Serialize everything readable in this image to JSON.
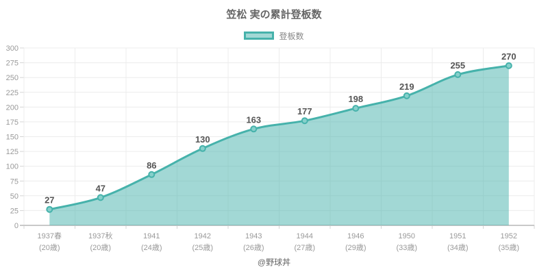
{
  "title": "笠松 実の累計登板数",
  "legend": {
    "label": "登板数"
  },
  "footer": "@野球丼",
  "colors": {
    "line": "#46b2ab",
    "area_fill": "rgba(70,178,171,0.5)",
    "marker_fill": "#86d0cb",
    "grid": "#ececec",
    "axis": "#c9c9c9",
    "tick": "#d4d4d4",
    "tick_label": "#999999",
    "data_label": "#555555",
    "title_text": "#666666",
    "legend_text": "#888888",
    "footer_text": "#666666"
  },
  "chart_data": {
    "type": "area",
    "title": "笠松 実の累計登板数",
    "legend_position": "top",
    "grid": true,
    "x_categories": [
      "1937春",
      "1937秋",
      "1941",
      "1942",
      "1943",
      "1944",
      "1946",
      "1950",
      "1951",
      "1952"
    ],
    "x_sublabels": [
      "(20歳)",
      "(20歳)",
      "(24歳)",
      "(25歳)",
      "(26歳)",
      "(27歳)",
      "(29歳)",
      "(33歳)",
      "(34歳)",
      "(35歳)"
    ],
    "series": [
      {
        "name": "登板数",
        "values": [
          27,
          47,
          86,
          130,
          163,
          177,
          198,
          219,
          255,
          270
        ]
      }
    ],
    "ylim": [
      0,
      300
    ],
    "ytick_step": 25
  }
}
